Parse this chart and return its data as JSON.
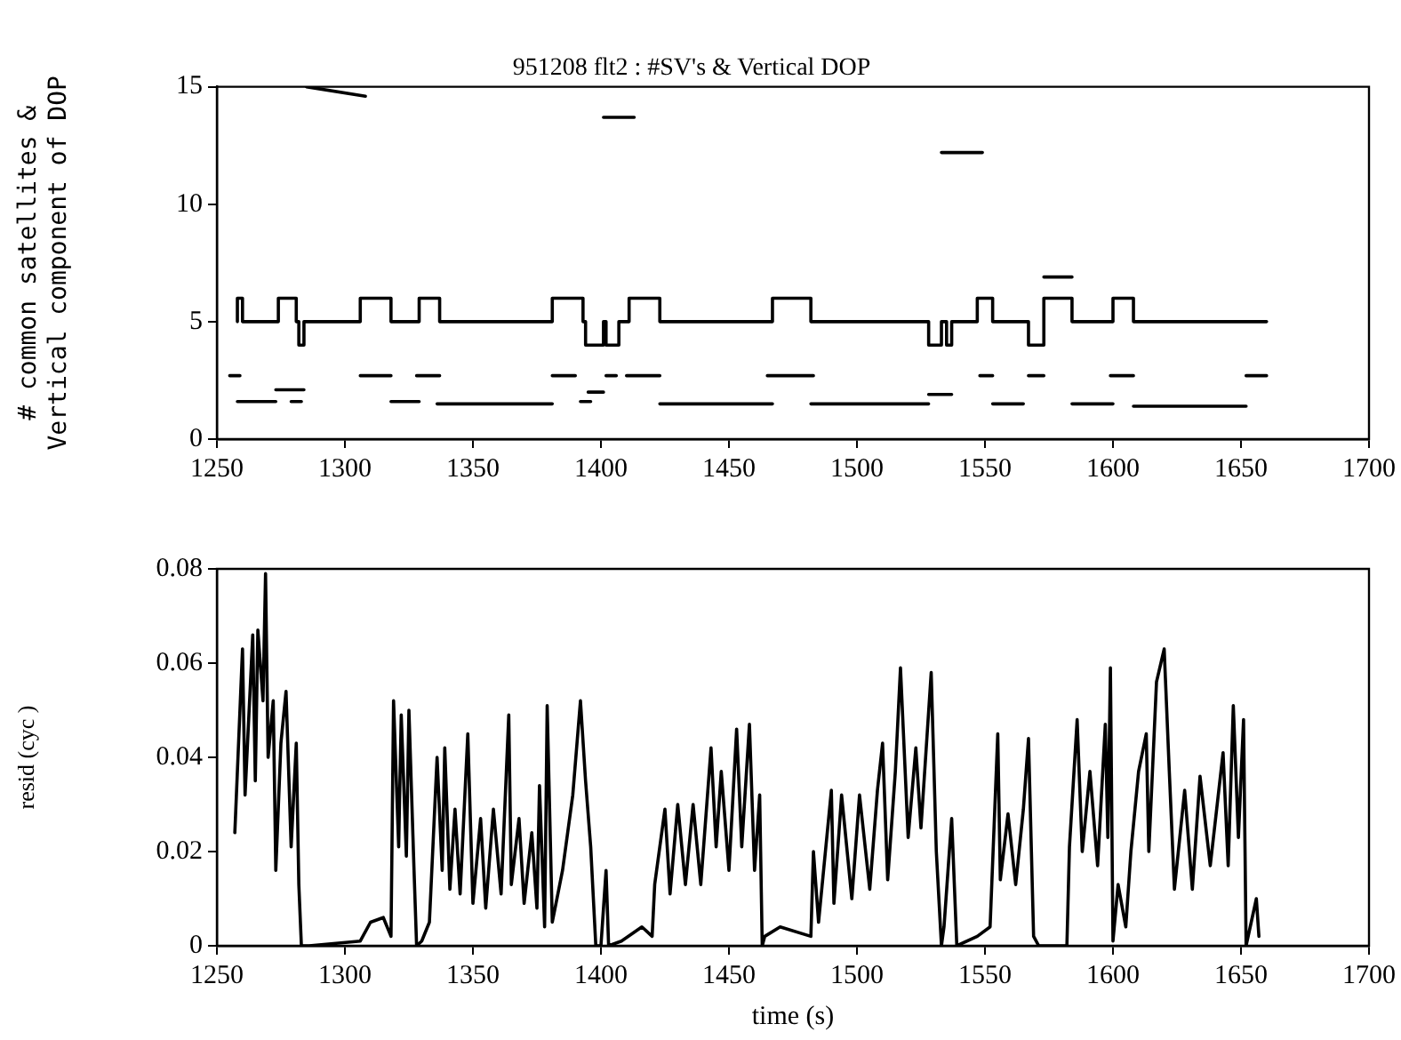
{
  "chart_data": [
    {
      "type": "line",
      "title": "951208 flt2 : #SV's & Vertical DOP",
      "ylabel": "# common satellites &\nVertical component of DOP",
      "xlim": [
        1250,
        1700
      ],
      "xticks": [
        1250,
        1300,
        1350,
        1400,
        1450,
        1500,
        1550,
        1600,
        1650,
        1700
      ],
      "ylim": [
        0,
        15
      ],
      "yticks": [
        0,
        5,
        10,
        15
      ],
      "grid": false,
      "legend": false,
      "marker": "none",
      "line_style": "solid",
      "series": [
        {
          "type": "step",
          "color": "#000000",
          "x": [
            1258,
            1260,
            1274,
            1281,
            1282,
            1284,
            1306,
            1318,
            1329,
            1337,
            1381,
            1393,
            1394,
            1401,
            1402,
            1407,
            1411,
            1423,
            1467,
            1482,
            1528,
            1533,
            1535,
            1537,
            1547,
            1553,
            1567,
            1573,
            1584,
            1600,
            1608,
            1650,
            1660
          ],
          "values": [
            5,
            6,
            5,
            6,
            5,
            4,
            5,
            6,
            5,
            6,
            5,
            6,
            5,
            4,
            5,
            4,
            5,
            6,
            5,
            6,
            5,
            4,
            5,
            4,
            5,
            6,
            5,
            4,
            6,
            5,
            6,
            5,
            5
          ]
        },
        {
          "type": "line",
          "color": "#000000",
          "x": [
            1285,
            1308,
            1350,
            1401,
            1413,
            1450,
            1533,
            1549,
            1560,
            1573,
            1584
          ],
          "values": [
            15,
            14.6,
            null,
            13.7,
            13.7,
            null,
            12.2,
            12.2,
            null,
            6.9,
            6.9
          ]
        },
        {
          "type": "line",
          "color": "#000000",
          "x": [
            1255,
            1259,
            1261,
            1273,
            1284,
            1290,
            1306,
            1318,
            1320,
            1328,
            1337,
            1340,
            1381,
            1390,
            1392,
            1395,
            1401,
            1401.5,
            1402,
            1406,
            1407,
            1410,
            1423,
            1430,
            1465,
            1483,
            1500,
            1528,
            1537,
            1540,
            1548,
            1553,
            1560,
            1567,
            1573,
            1580,
            1599,
            1608,
            1620,
            1652,
            1660
          ],
          "values": [
            2.7,
            2.7,
            null,
            2.1,
            2.1,
            null,
            2.7,
            2.7,
            null,
            2.7,
            2.7,
            null,
            2.7,
            2.7,
            null,
            2,
            2,
            null,
            2.7,
            2.7,
            null,
            2.7,
            2.7,
            null,
            2.7,
            2.7,
            null,
            1.9,
            1.9,
            null,
            2.7,
            2.7,
            null,
            2.7,
            2.7,
            null,
            2.7,
            2.7,
            null,
            2.7,
            2.7
          ]
        },
        {
          "type": "line",
          "color": "#000000",
          "x": [
            1258,
            1273,
            1276,
            1279,
            1283,
            1290,
            1318,
            1329,
            1332,
            1336,
            1381,
            1385,
            1392,
            1396,
            1400,
            1423,
            1467,
            1475,
            1482,
            1528,
            1540,
            1553,
            1565,
            1575,
            1584,
            1600,
            1604,
            1608,
            1652
          ],
          "values": [
            1.6,
            1.6,
            null,
            1.6,
            1.6,
            null,
            1.6,
            1.6,
            null,
            1.5,
            1.5,
            null,
            1.6,
            1.6,
            null,
            1.5,
            1.5,
            null,
            1.5,
            1.5,
            null,
            1.5,
            1.5,
            null,
            1.5,
            1.5,
            null,
            1.4,
            1.4
          ]
        }
      ]
    },
    {
      "type": "line",
      "xlabel": "time (s)",
      "ylabel": "resid (cyc )",
      "xlim": [
        1250,
        1700
      ],
      "xticks": [
        1250,
        1300,
        1350,
        1400,
        1450,
        1500,
        1550,
        1600,
        1650,
        1700
      ],
      "ylim": [
        0,
        0.08
      ],
      "yticks": [
        0,
        0.02,
        0.04,
        0.06,
        0.08
      ],
      "grid": false,
      "legend": false,
      "marker": "none",
      "line_style": "solid",
      "series": [
        {
          "type": "line",
          "color": "#000000",
          "x": [
            1257,
            1260,
            1261,
            1264,
            1265,
            1266,
            1268,
            1269,
            1270,
            1272,
            1273,
            1275,
            1277,
            1279,
            1281,
            1282,
            1283,
            1286,
            1306,
            1310,
            1315,
            1318,
            1319,
            1321,
            1322,
            1324,
            1325,
            1327,
            1328,
            1330,
            1333,
            1336,
            1338,
            1339,
            1341,
            1343,
            1345,
            1348,
            1350,
            1353,
            1355,
            1358,
            1361,
            1364,
            1365,
            1368,
            1370,
            1373,
            1375,
            1376,
            1378,
            1379,
            1381,
            1385,
            1389,
            1392,
            1394,
            1396,
            1398,
            1400,
            1402,
            1403,
            1408,
            1416,
            1420,
            1421,
            1425,
            1427,
            1430,
            1433,
            1436,
            1439,
            1443,
            1445,
            1447,
            1450,
            1453,
            1455,
            1458,
            1460,
            1462,
            1463,
            1464,
            1470,
            1482,
            1483,
            1485,
            1490,
            1491,
            1494,
            1498,
            1501,
            1505,
            1508,
            1510,
            1512,
            1515,
            1517,
            1520,
            1523,
            1525,
            1529,
            1531,
            1533,
            1534,
            1537,
            1539,
            1547,
            1552,
            1555,
            1556,
            1559,
            1562,
            1565,
            1567,
            1569,
            1571,
            1582,
            1583,
            1586,
            1588,
            1591,
            1594,
            1597,
            1598,
            1599,
            1600,
            1602,
            1605,
            1607,
            1610,
            1613,
            1614,
            1617,
            1620,
            1622,
            1624,
            1628,
            1631,
            1634,
            1638,
            1643,
            1645,
            1647,
            1649,
            1651,
            1652,
            1654,
            1656,
            1657
          ],
          "values": [
            0.024,
            0.063,
            0.032,
            0.066,
            0.035,
            0.067,
            0.052,
            0.079,
            0.04,
            0.052,
            0.016,
            0.043,
            0.054,
            0.021,
            0.043,
            0.013,
            0,
            0,
            0.001,
            0.005,
            0.006,
            0.002,
            0.052,
            0.021,
            0.049,
            0.019,
            0.05,
            0.016,
            0,
            0.001,
            0.005,
            0.04,
            0.016,
            0.042,
            0.012,
            0.029,
            0.011,
            0.045,
            0.009,
            0.027,
            0.008,
            0.029,
            0.011,
            0.049,
            0.013,
            0.027,
            0.009,
            0.024,
            0.008,
            0.034,
            0.004,
            0.051,
            0.005,
            0.016,
            0.032,
            0.052,
            0.035,
            0.021,
            0,
            0,
            0.016,
            0,
            0.001,
            0.004,
            0.002,
            0.013,
            0.029,
            0.011,
            0.03,
            0.013,
            0.03,
            0.013,
            0.042,
            0.021,
            0.037,
            0.016,
            0.046,
            0.021,
            0.047,
            0.016,
            0.032,
            0,
            0.002,
            0.004,
            0.002,
            0.02,
            0.005,
            0.033,
            0.009,
            0.032,
            0.01,
            0.032,
            0.012,
            0.033,
            0.043,
            0.014,
            0.037,
            0.059,
            0.023,
            0.042,
            0.025,
            0.058,
            0.02,
            0,
            0.004,
            0.027,
            0,
            0.002,
            0.004,
            0.045,
            0.014,
            0.028,
            0.013,
            0.029,
            0.044,
            0.002,
            0,
            0,
            0.021,
            0.048,
            0.02,
            0.037,
            0.017,
            0.047,
            0.023,
            0.059,
            0.001,
            0.013,
            0.004,
            0.02,
            0.037,
            0.045,
            0.02,
            0.056,
            0.063,
            0.037,
            0.012,
            0.033,
            0.012,
            0.036,
            0.017,
            0.041,
            0.017,
            0.051,
            0.023,
            0.048,
            0,
            0.005,
            0.01,
            0.002
          ]
        }
      ]
    }
  ]
}
